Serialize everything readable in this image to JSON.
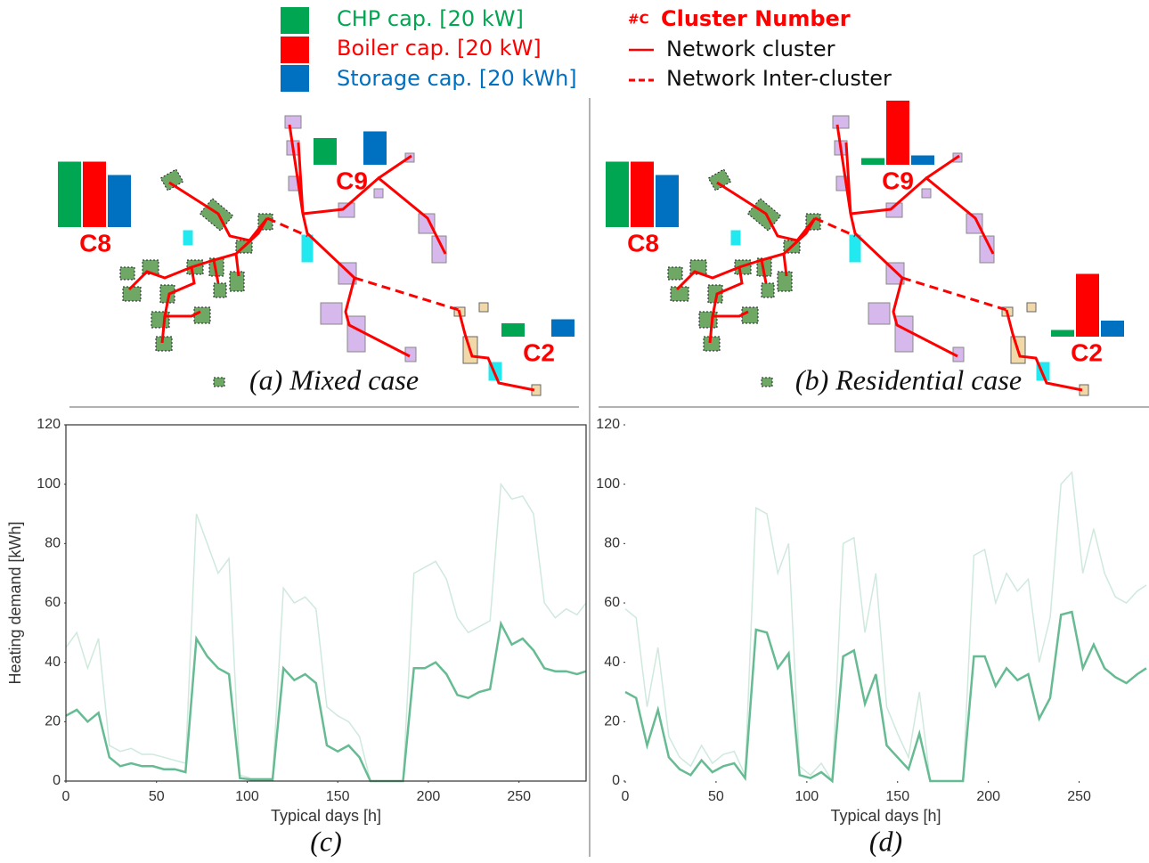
{
  "legend": {
    "chp": {
      "label": "CHP cap. [20 kW]",
      "color": "#00a651"
    },
    "boiler": {
      "label": "Boiler cap. [20 kW]",
      "color": "#ff0000"
    },
    "storage": {
      "label": "Storage cap. [20 kWh]",
      "color": "#0070c0"
    },
    "cluster_symbol": "#C",
    "cluster_label": "Cluster Number",
    "network_cluster": "Network cluster",
    "network_inter": "Network Inter-cluster"
  },
  "maps": [
    {
      "caption": "(a) Mixed case",
      "clusters": [
        {
          "label": "C8",
          "chp": 49,
          "boiler": 49,
          "storage": 39
        },
        {
          "label": "C9",
          "chp": 20,
          "boiler": 0,
          "storage": 25
        },
        {
          "label": "C2",
          "chp": 10,
          "boiler": 0,
          "storage": 13
        }
      ]
    },
    {
      "caption": "(b) Residential case",
      "clusters": [
        {
          "label": "C8",
          "chp": 49,
          "boiler": 49,
          "storage": 39
        },
        {
          "label": "C9",
          "chp": 5,
          "boiler": 48,
          "storage": 7
        },
        {
          "label": "C2",
          "chp": 5,
          "boiler": 47,
          "storage": 12
        }
      ]
    }
  ],
  "chart_data": [
    {
      "type": "line",
      "caption": "(c)",
      "xlabel": "Typical days [h]",
      "ylabel": "Heating demand [kWh]",
      "xlim": [
        0,
        287
      ],
      "ylim": [
        0,
        120
      ],
      "xticks": [
        0,
        50,
        100,
        150,
        200,
        250
      ],
      "yticks": [
        0,
        20,
        40,
        60,
        80,
        100,
        120
      ],
      "frame": true,
      "x": [
        0,
        6,
        12,
        18,
        24,
        30,
        36,
        42,
        48,
        54,
        60,
        66,
        72,
        78,
        84,
        90,
        96,
        102,
        108,
        114,
        120,
        126,
        132,
        138,
        144,
        150,
        156,
        162,
        168,
        174,
        180,
        186,
        192,
        198,
        204,
        210,
        216,
        222,
        228,
        234,
        240,
        246,
        252,
        258,
        264,
        270,
        276,
        282,
        287
      ],
      "series": [
        {
          "color": "#cfe9dd",
          "values": [
            45,
            50,
            38,
            48,
            12,
            10,
            11,
            9,
            9,
            8,
            7,
            6,
            90,
            80,
            70,
            75,
            2,
            1,
            1,
            1,
            65,
            60,
            62,
            58,
            25,
            22,
            20,
            15,
            0,
            0,
            0,
            0,
            70,
            72,
            74,
            68,
            55,
            50,
            52,
            54,
            100,
            95,
            96,
            90,
            60,
            55,
            58,
            56,
            60
          ]
        },
        {
          "color": "#66bb92",
          "values": [
            22,
            24,
            20,
            23,
            8,
            5,
            6,
            5,
            5,
            4,
            4,
            3,
            48,
            42,
            38,
            36,
            1,
            0.5,
            0.5,
            0.5,
            38,
            34,
            36,
            33,
            12,
            10,
            12,
            8,
            0,
            0,
            0,
            0,
            38,
            38,
            40,
            36,
            29,
            28,
            30,
            31,
            53,
            46,
            48,
            44,
            38,
            37,
            37,
            36,
            37
          ]
        }
      ]
    },
    {
      "type": "line",
      "caption": "(d)",
      "xlabel": "Typical days [h]",
      "xlim": [
        0,
        287
      ],
      "ylim": [
        0,
        120
      ],
      "xticks": [
        0,
        50,
        100,
        150,
        200,
        250
      ],
      "yticks": [
        0,
        20,
        40,
        60,
        80,
        100,
        120
      ],
      "frame": false,
      "x": [
        0,
        6,
        12,
        18,
        24,
        30,
        36,
        42,
        48,
        54,
        60,
        66,
        72,
        78,
        84,
        90,
        96,
        102,
        108,
        114,
        120,
        126,
        132,
        138,
        144,
        150,
        156,
        162,
        168,
        174,
        180,
        186,
        192,
        198,
        204,
        210,
        216,
        222,
        228,
        234,
        240,
        246,
        252,
        258,
        264,
        270,
        276,
        282,
        287
      ],
      "series": [
        {
          "color": "#cfe9dd",
          "values": [
            58,
            55,
            25,
            45,
            15,
            8,
            5,
            12,
            6,
            9,
            10,
            2,
            92,
            90,
            70,
            80,
            5,
            2,
            6,
            0,
            80,
            82,
            50,
            70,
            25,
            16,
            8,
            30,
            0,
            0,
            0,
            0,
            76,
            78,
            60,
            70,
            64,
            68,
            40,
            55,
            100,
            104,
            70,
            85,
            70,
            62,
            60,
            64,
            66
          ]
        },
        {
          "color": "#66bb92",
          "values": [
            30,
            28,
            12,
            24,
            8,
            4,
            2,
            7,
            3,
            5,
            6,
            1,
            51,
            50,
            38,
            43,
            2,
            1,
            3,
            0,
            42,
            44,
            26,
            36,
            12,
            8,
            4,
            16,
            0,
            0,
            0,
            0,
            42,
            42,
            32,
            38,
            34,
            36,
            21,
            28,
            56,
            57,
            38,
            46,
            38,
            35,
            33,
            36,
            38
          ]
        }
      ]
    }
  ]
}
